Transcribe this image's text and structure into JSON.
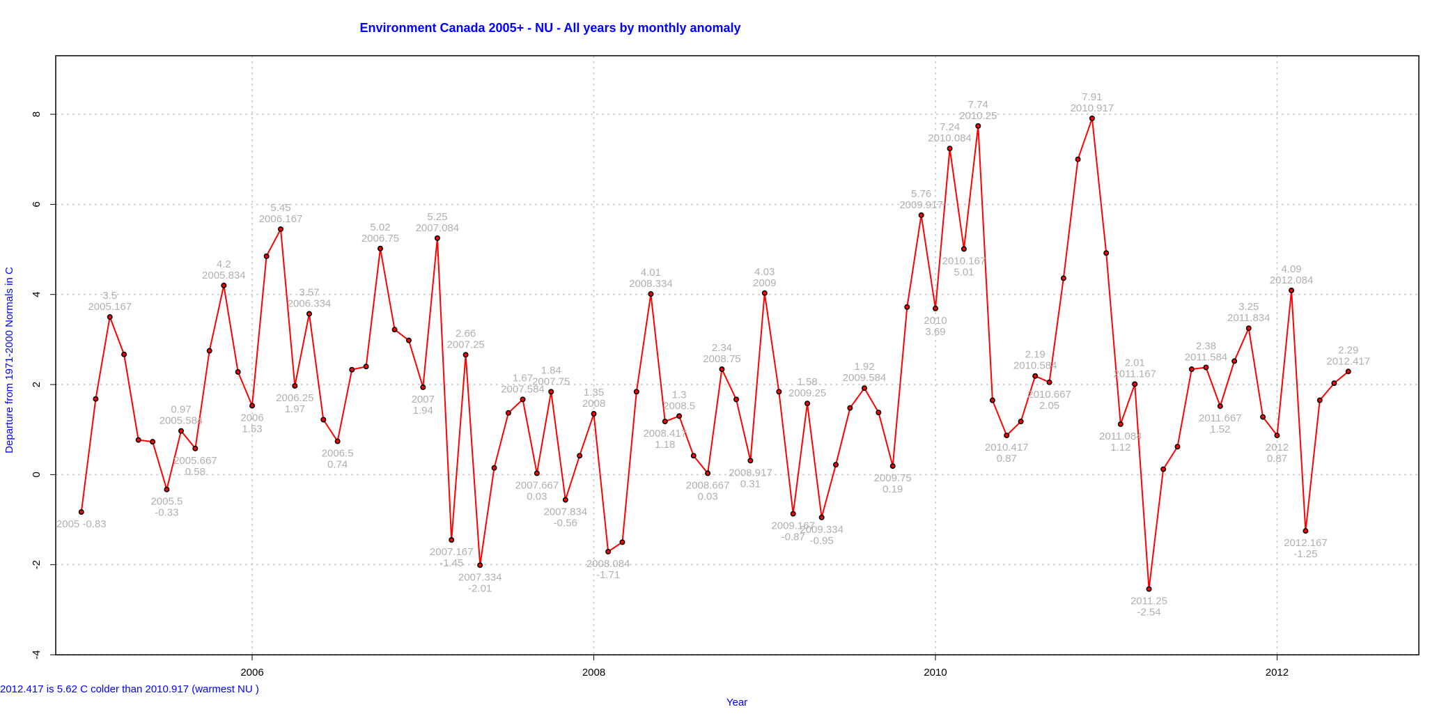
{
  "chart_data": {
    "type": "line",
    "title": "Environment Canada 2005+ - NU - All years by monthly anomaly",
    "xlabel": "Year",
    "ylabel": "Departure from 1971-2000 Normals in C",
    "footnote": "2012.417 is 5.62 C  colder than 2010.917 (warmest NU )",
    "xlim": [
      2004.85,
      2012.83
    ],
    "ylim": [
      -4,
      9.3
    ],
    "x_ticks": [
      {
        "value": 2006,
        "label": "2006"
      },
      {
        "value": 2008,
        "label": "2008"
      },
      {
        "value": 2010,
        "label": "2010"
      },
      {
        "value": 2012,
        "label": "2012"
      }
    ],
    "y_ticks": [
      {
        "value": -4,
        "label": "-4"
      },
      {
        "value": -2,
        "label": "-2"
      },
      {
        "value": 0,
        "label": "0"
      },
      {
        "value": 2,
        "label": "2"
      },
      {
        "value": 4,
        "label": "4"
      },
      {
        "value": 6,
        "label": "6"
      },
      {
        "value": 8,
        "label": "8"
      }
    ],
    "grid": true,
    "colors": {
      "line": "#ff0000",
      "point_fill": "#ff0000",
      "point_stroke": "#000000",
      "label": "#b0b0b0",
      "title": "#0000ff",
      "grid": "#c8c8c8"
    },
    "series": [
      {
        "name": "NU monthly anomaly",
        "x": [
          2005,
          2005.084,
          2005.167,
          2005.25,
          2005.334,
          2005.417,
          2005.5,
          2005.584,
          2005.667,
          2005.75,
          2005.834,
          2005.917,
          2006,
          2006.084,
          2006.167,
          2006.25,
          2006.334,
          2006.417,
          2006.5,
          2006.584,
          2006.667,
          2006.75,
          2006.834,
          2006.917,
          2007,
          2007.084,
          2007.167,
          2007.25,
          2007.334,
          2007.417,
          2007.5,
          2007.584,
          2007.667,
          2007.75,
          2007.834,
          2007.917,
          2008,
          2008.084,
          2008.167,
          2008.25,
          2008.334,
          2008.417,
          2008.5,
          2008.584,
          2008.667,
          2008.75,
          2008.834,
          2008.917,
          2009,
          2009.084,
          2009.167,
          2009.25,
          2009.334,
          2009.417,
          2009.5,
          2009.584,
          2009.667,
          2009.75,
          2009.834,
          2009.917,
          2010,
          2010.084,
          2010.167,
          2010.25,
          2010.334,
          2010.417,
          2010.5,
          2010.584,
          2010.667,
          2010.75,
          2010.834,
          2010.917,
          2011,
          2011.084,
          2011.167,
          2011.25,
          2011.334,
          2011.417,
          2011.5,
          2011.584,
          2011.667,
          2011.75,
          2011.834,
          2011.917,
          2012,
          2012.084,
          2012.167,
          2012.25,
          2012.334,
          2012.417
        ],
        "y": [
          -0.83,
          1.68,
          3.5,
          2.67,
          0.77,
          0.73,
          -0.33,
          0.97,
          0.58,
          2.75,
          4.2,
          2.28,
          1.53,
          4.85,
          5.45,
          1.97,
          3.57,
          1.22,
          0.74,
          2.33,
          2.4,
          5.02,
          3.22,
          2.98,
          1.94,
          5.25,
          -1.45,
          2.66,
          -2.01,
          0.15,
          1.37,
          1.67,
          0.03,
          1.84,
          -0.56,
          0.42,
          1.35,
          -1.71,
          -1.5,
          1.84,
          4.01,
          1.18,
          1.3,
          0.42,
          0.03,
          2.34,
          1.67,
          0.31,
          4.03,
          1.84,
          -0.87,
          1.58,
          -0.95,
          0.22,
          1.48,
          1.92,
          1.38,
          0.19,
          3.72,
          5.76,
          3.69,
          7.24,
          5.01,
          7.74,
          1.65,
          0.87,
          1.18,
          2.19,
          2.05,
          4.36,
          7.0,
          7.91,
          4.92,
          1.12,
          2.01,
          -2.54,
          0.12,
          0.62,
          2.34,
          2.38,
          1.52,
          2.52,
          3.25,
          1.28,
          0.87,
          4.09,
          -1.25,
          1.65,
          2.03,
          2.29
        ]
      }
    ],
    "annotations": [
      {
        "x": 2005,
        "y": -0.83,
        "line1": "2005 -0.83",
        "line2": "",
        "pos": "below"
      },
      {
        "x": 2005.167,
        "y": 3.5,
        "line1": "3.5",
        "line2": "2005.167",
        "pos": "above"
      },
      {
        "x": 2005.5,
        "y": -0.33,
        "line1": "2005.5",
        "line2": "-0.33",
        "pos": "below"
      },
      {
        "x": 2005.584,
        "y": 0.97,
        "line1": "0.97",
        "line2": "2005.584",
        "pos": "above"
      },
      {
        "x": 2005.667,
        "y": 0.58,
        "line1": "2005.667",
        "line2": "0.58",
        "pos": "below"
      },
      {
        "x": 2005.834,
        "y": 4.2,
        "line1": "4.2",
        "line2": "2005.834",
        "pos": "above"
      },
      {
        "x": 2006,
        "y": 1.53,
        "line1": "2006",
        "line2": "1.53",
        "pos": "below"
      },
      {
        "x": 2006.167,
        "y": 5.45,
        "line1": "5.45",
        "line2": "2006.167",
        "pos": "above"
      },
      {
        "x": 2006.25,
        "y": 1.97,
        "line1": "2006.25",
        "line2": "1.97",
        "pos": "below"
      },
      {
        "x": 2006.334,
        "y": 3.57,
        "line1": "3.57",
        "line2": "2006.334",
        "pos": "above"
      },
      {
        "x": 2006.5,
        "y": 0.74,
        "line1": "2006.5",
        "line2": "0.74",
        "pos": "below"
      },
      {
        "x": 2006.75,
        "y": 5.02,
        "line1": "5.02",
        "line2": "2006.75",
        "pos": "above"
      },
      {
        "x": 2007,
        "y": 1.94,
        "line1": "2007",
        "line2": "1.94",
        "pos": "below"
      },
      {
        "x": 2007.084,
        "y": 5.25,
        "line1": "5.25",
        "line2": "2007.084",
        "pos": "above"
      },
      {
        "x": 2007.167,
        "y": -1.45,
        "line1": "2007.167",
        "line2": "-1.45",
        "pos": "below"
      },
      {
        "x": 2007.25,
        "y": 2.66,
        "line1": "2.66",
        "line2": "2007.25",
        "pos": "above"
      },
      {
        "x": 2007.334,
        "y": -2.01,
        "line1": "2007.334",
        "line2": "-2.01",
        "pos": "below"
      },
      {
        "x": 2007.584,
        "y": 1.67,
        "line1": "1.67",
        "line2": "2007.584",
        "pos": "above"
      },
      {
        "x": 2007.667,
        "y": 0.03,
        "line1": "2007.667",
        "line2": "0.03",
        "pos": "below"
      },
      {
        "x": 2007.75,
        "y": 1.84,
        "line1": "1.84",
        "line2": "2007.75",
        "pos": "above"
      },
      {
        "x": 2007.834,
        "y": -0.56,
        "line1": "2007.834",
        "line2": "-0.56",
        "pos": "below"
      },
      {
        "x": 2008,
        "y": 1.35,
        "line1": "1.35",
        "line2": "2008",
        "pos": "above"
      },
      {
        "x": 2008.084,
        "y": -1.71,
        "line1": "2008.084",
        "line2": "-1.71",
        "pos": "below"
      },
      {
        "x": 2008.334,
        "y": 4.01,
        "line1": "4.01",
        "line2": "2008.334",
        "pos": "above"
      },
      {
        "x": 2008.417,
        "y": 1.18,
        "line1": "2008.417",
        "line2": "1.18",
        "pos": "below"
      },
      {
        "x": 2008.5,
        "y": 1.3,
        "line1": "1.3",
        "line2": "2008.5",
        "pos": "above"
      },
      {
        "x": 2008.667,
        "y": 0.03,
        "line1": "2008.667",
        "line2": "0.03",
        "pos": "below"
      },
      {
        "x": 2008.75,
        "y": 2.34,
        "line1": "2.34",
        "line2": "2008.75",
        "pos": "above"
      },
      {
        "x": 2008.917,
        "y": 0.31,
        "line1": "2008.917",
        "line2": "0.31",
        "pos": "below"
      },
      {
        "x": 2009,
        "y": 4.03,
        "line1": "4.03",
        "line2": "2009",
        "pos": "above"
      },
      {
        "x": 2009.167,
        "y": -0.87,
        "line1": "2009.167",
        "line2": "-0.87",
        "pos": "below"
      },
      {
        "x": 2009.25,
        "y": 1.58,
        "line1": "1.58",
        "line2": "2009.25",
        "pos": "above"
      },
      {
        "x": 2009.334,
        "y": -0.95,
        "line1": "2009.334",
        "line2": "-0.95",
        "pos": "below"
      },
      {
        "x": 2009.584,
        "y": 1.92,
        "line1": "1.92",
        "line2": "2009.584",
        "pos": "above"
      },
      {
        "x": 2009.75,
        "y": 0.19,
        "line1": "2009.75",
        "line2": "0.19",
        "pos": "below"
      },
      {
        "x": 2009.917,
        "y": 5.76,
        "line1": "5.76",
        "line2": "2009.917",
        "pos": "above"
      },
      {
        "x": 2010,
        "y": 3.69,
        "line1": "2010",
        "line2": "3.69",
        "pos": "below"
      },
      {
        "x": 2010.084,
        "y": 7.24,
        "line1": "7.24",
        "line2": "2010.084",
        "pos": "above"
      },
      {
        "x": 2010.167,
        "y": 5.01,
        "line1": "2010.167",
        "line2": "5.01",
        "pos": "below"
      },
      {
        "x": 2010.25,
        "y": 7.74,
        "line1": "7.74",
        "line2": "2010.25",
        "pos": "above"
      },
      {
        "x": 2010.417,
        "y": 0.87,
        "line1": "2010.417",
        "line2": "0.87",
        "pos": "below"
      },
      {
        "x": 2010.584,
        "y": 2.19,
        "line1": "2.19",
        "line2": "2010.584",
        "pos": "above"
      },
      {
        "x": 2010.667,
        "y": 2.05,
        "line1": "2010.667",
        "line2": "2.05",
        "pos": "below"
      },
      {
        "x": 2010.917,
        "y": 7.91,
        "line1": "7.91",
        "line2": "2010.917",
        "pos": "above"
      },
      {
        "x": 2011.084,
        "y": 1.12,
        "line1": "2011.084",
        "line2": "1.12",
        "pos": "below"
      },
      {
        "x": 2011.167,
        "y": 2.01,
        "line1": "2.01",
        "line2": "2011.167",
        "pos": "above"
      },
      {
        "x": 2011.25,
        "y": -2.54,
        "line1": "2011.25",
        "line2": "-2.54",
        "pos": "below"
      },
      {
        "x": 2011.584,
        "y": 2.38,
        "line1": "2.38",
        "line2": "2011.584",
        "pos": "above"
      },
      {
        "x": 2011.667,
        "y": 1.52,
        "line1": "2011.667",
        "line2": "1.52",
        "pos": "below"
      },
      {
        "x": 2011.834,
        "y": 3.25,
        "line1": "3.25",
        "line2": "2011.834",
        "pos": "above"
      },
      {
        "x": 2012,
        "y": 0.87,
        "line1": "2012",
        "line2": "0.87",
        "pos": "below"
      },
      {
        "x": 2012.084,
        "y": 4.09,
        "line1": "4.09",
        "line2": "2012.084",
        "pos": "above"
      },
      {
        "x": 2012.167,
        "y": -1.25,
        "line1": "2012.167",
        "line2": "-1.25",
        "pos": "below"
      },
      {
        "x": 2012.417,
        "y": 2.29,
        "line1": "2.29",
        "line2": "2012.417",
        "pos": "above"
      }
    ]
  }
}
